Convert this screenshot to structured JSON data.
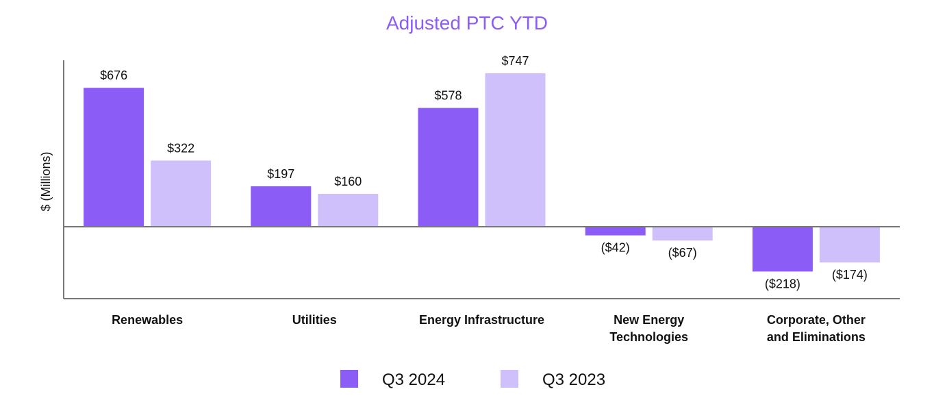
{
  "chart_data": {
    "type": "bar",
    "title": "Adjusted PTC YTD",
    "xlabel": "",
    "ylabel": "$ (Millions)",
    "ylim": [
      -340,
      780
    ],
    "grid": false,
    "legend_position": "bottom-center",
    "categories": [
      [
        "Renewables"
      ],
      [
        "Utilities"
      ],
      [
        "Energy Infrastructure"
      ],
      [
        "New Energy",
        "Technologies"
      ],
      [
        "Corporate, Other",
        "and Eliminations"
      ]
    ],
    "series": [
      {
        "name": "Q3 2024",
        "color": "#8b5cf6",
        "values": [
          676,
          197,
          578,
          -42,
          -218
        ],
        "labels": [
          "$676",
          "$197",
          "$578",
          "($42)",
          "($218)"
        ]
      },
      {
        "name": "Q3 2023",
        "color": "#cfbffa",
        "values": [
          322,
          160,
          747,
          -67,
          -174
        ],
        "labels": [
          "$322",
          "$160",
          "$747",
          "($67)",
          "($174)"
        ]
      }
    ],
    "colors": {
      "title": "#8b5cf6",
      "axis": "#777777"
    }
  }
}
